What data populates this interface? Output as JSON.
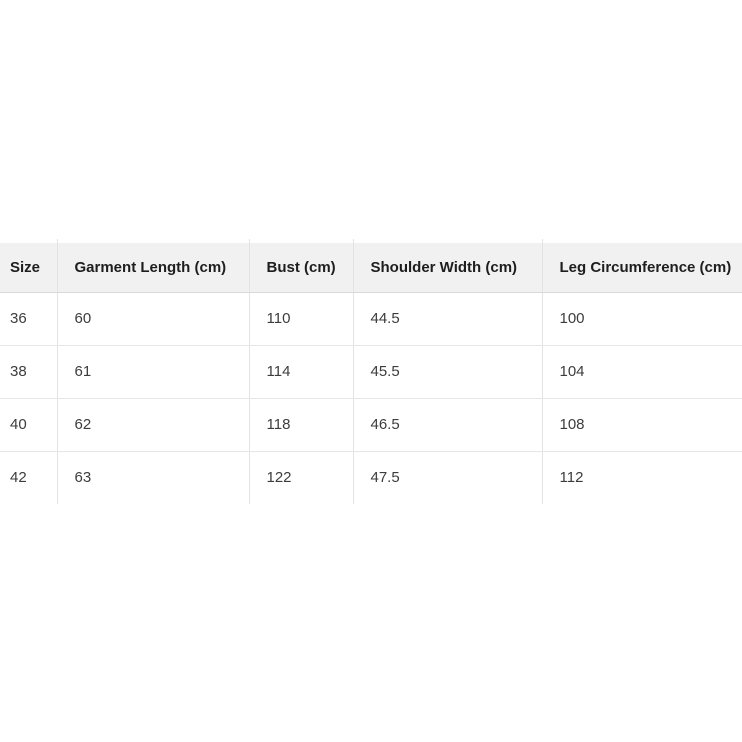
{
  "table": {
    "columns": [
      "Size",
      "Garment Length (cm)",
      "Bust (cm)",
      "Shoulder Width (cm)",
      "Leg Circumference (cm)"
    ],
    "rows": [
      [
        "36",
        "60",
        "110",
        "44.5",
        "100"
      ],
      [
        "38",
        "61",
        "114",
        "45.5",
        "104"
      ],
      [
        "40",
        "62",
        "118",
        "46.5",
        "108"
      ],
      [
        "42",
        "63",
        "122",
        "47.5",
        "112"
      ]
    ]
  },
  "colors": {
    "header_bg": "#f1f1f1",
    "header_text": "#1e1e1e",
    "body_text": "#3c3c3c",
    "divider": "#e3e3e3",
    "header_border": "#d9d9d9",
    "row_border": "#e6e6e6",
    "page_bg": "#ffffff"
  }
}
